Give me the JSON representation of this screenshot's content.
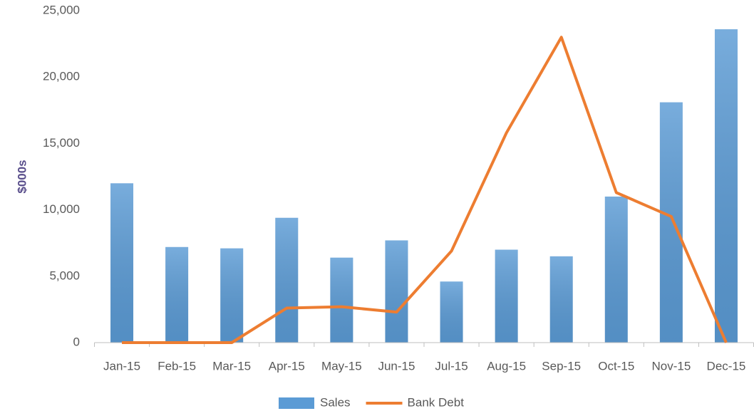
{
  "chart_data": {
    "type": "bar_line",
    "y_axis_label": "$000s",
    "categories": [
      "Jan-15",
      "Feb-15",
      "Mar-15",
      "Apr-15",
      "May-15",
      "Jun-15",
      "Jul-15",
      "Aug-15",
      "Sep-15",
      "Oct-15",
      "Nov-15",
      "Dec-15"
    ],
    "series": [
      {
        "name": "Sales",
        "type": "bar",
        "color": "#5b9bd5",
        "values": [
          12000,
          7200,
          7100,
          9400,
          6400,
          7700,
          4600,
          7000,
          6500,
          11000,
          18100,
          23600
        ]
      },
      {
        "name": "Bank Debt",
        "type": "line",
        "color": "#ed7d31",
        "values": [
          0,
          0,
          0,
          2600,
          2700,
          2300,
          6900,
          15800,
          23000,
          11300,
          9500,
          0
        ]
      }
    ],
    "ylim": [
      0,
      25000
    ],
    "yticks": [
      0,
      {
        "value": 5000,
        "label": "5,000"
      },
      {
        "value": 10000,
        "label": "10,000"
      },
      {
        "value": 15000,
        "label": "15,000"
      },
      {
        "value": 20000,
        "label": "20,000"
      },
      {
        "value": 25000,
        "label": "25,000"
      }
    ],
    "grid": false,
    "legend": "bottom"
  }
}
